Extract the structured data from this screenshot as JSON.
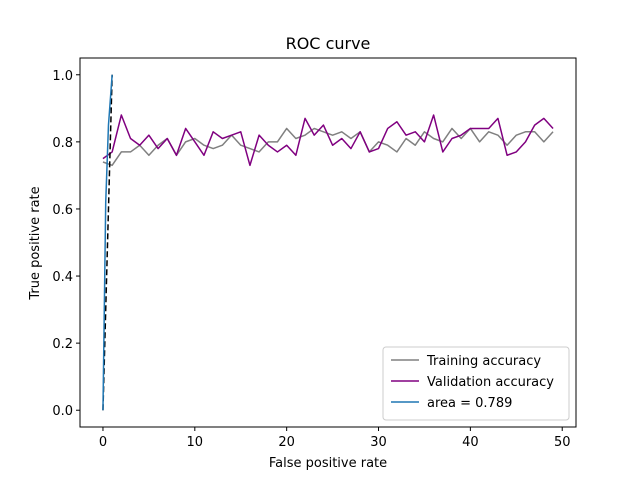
{
  "chart_data": {
    "type": "line",
    "title": "ROC curve",
    "xlabel": "False positive rate",
    "ylabel": "True positive rate",
    "xlim": [
      -2.5,
      51.5
    ],
    "ylim": [
      -0.05,
      1.05
    ],
    "xticks": [
      0,
      10,
      20,
      30,
      40,
      50
    ],
    "xtick_labels": [
      "0",
      "10",
      "20",
      "30",
      "40",
      "50"
    ],
    "yticks": [
      0.0,
      0.2,
      0.4,
      0.6,
      0.8,
      1.0
    ],
    "ytick_labels": [
      "0.0",
      "0.2",
      "0.4",
      "0.6",
      "0.8",
      "1.0"
    ],
    "grid": false,
    "legend_position": "lower-right",
    "series": [
      {
        "name": "Training accuracy",
        "color": "#808080",
        "style": "solid",
        "x": [
          0,
          1,
          2,
          3,
          4,
          5,
          6,
          7,
          8,
          9,
          10,
          11,
          12,
          13,
          14,
          15,
          16,
          17,
          18,
          19,
          20,
          21,
          22,
          23,
          24,
          25,
          26,
          27,
          28,
          29,
          30,
          31,
          32,
          33,
          34,
          35,
          36,
          37,
          38,
          39,
          40,
          41,
          42,
          43,
          44,
          45,
          46,
          47,
          48,
          49
        ],
        "y": [
          0.74,
          0.73,
          0.77,
          0.77,
          0.79,
          0.76,
          0.79,
          0.81,
          0.76,
          0.8,
          0.81,
          0.79,
          0.78,
          0.79,
          0.82,
          0.79,
          0.78,
          0.77,
          0.8,
          0.8,
          0.84,
          0.81,
          0.82,
          0.84,
          0.83,
          0.82,
          0.83,
          0.81,
          0.83,
          0.77,
          0.8,
          0.79,
          0.77,
          0.81,
          0.79,
          0.83,
          0.81,
          0.8,
          0.84,
          0.81,
          0.84,
          0.8,
          0.83,
          0.82,
          0.79,
          0.82,
          0.83,
          0.83,
          0.8,
          0.83
        ]
      },
      {
        "name": "Validation accuracy",
        "color": "#800080",
        "style": "solid",
        "x": [
          0,
          1,
          2,
          3,
          4,
          5,
          6,
          7,
          8,
          9,
          10,
          11,
          12,
          13,
          14,
          15,
          16,
          17,
          18,
          19,
          20,
          21,
          22,
          23,
          24,
          25,
          26,
          27,
          28,
          29,
          30,
          31,
          32,
          33,
          34,
          35,
          36,
          37,
          38,
          39,
          40,
          41,
          42,
          43,
          44,
          45,
          46,
          47,
          48,
          49
        ],
        "y": [
          0.75,
          0.77,
          0.88,
          0.81,
          0.79,
          0.82,
          0.78,
          0.81,
          0.76,
          0.84,
          0.8,
          0.76,
          0.83,
          0.81,
          0.82,
          0.83,
          0.73,
          0.82,
          0.79,
          0.77,
          0.79,
          0.76,
          0.87,
          0.82,
          0.85,
          0.79,
          0.81,
          0.78,
          0.83,
          0.77,
          0.78,
          0.84,
          0.86,
          0.82,
          0.83,
          0.8,
          0.88,
          0.77,
          0.81,
          0.82,
          0.84,
          0.84,
          0.84,
          0.87,
          0.76,
          0.77,
          0.8,
          0.85,
          0.87,
          0.84
        ]
      },
      {
        "name": "area = 0.789",
        "color": "#1f77b4",
        "style": "solid",
        "x": [
          0.0,
          0.3,
          0.6,
          1.0
        ],
        "y": [
          0.0,
          0.62,
          0.85,
          1.0
        ]
      },
      {
        "name": "",
        "color": "#000000",
        "style": "dashed",
        "x": [
          0,
          1
        ],
        "y": [
          0,
          1
        ]
      }
    ]
  }
}
